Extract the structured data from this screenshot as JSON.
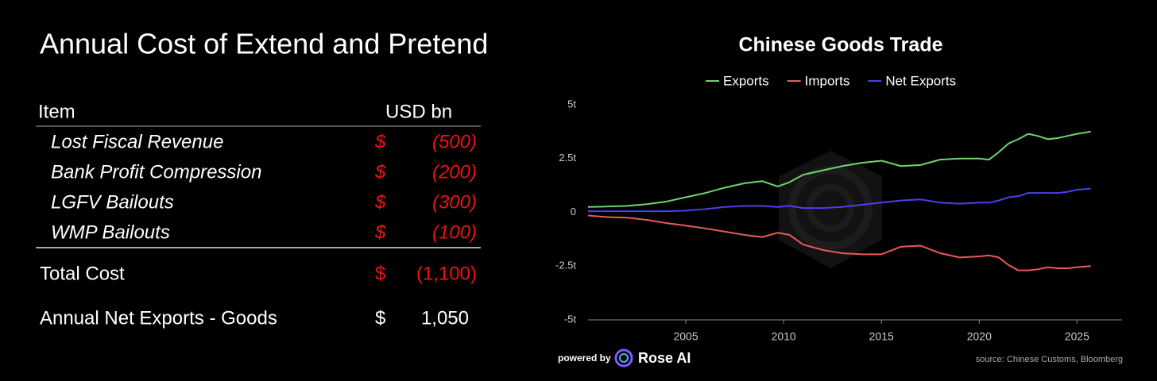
{
  "table": {
    "title": "Annual Cost of Extend and Pretend",
    "header": [
      "Item",
      "USD bn"
    ],
    "rows": [
      [
        "Lost Fiscal Revenue",
        "$",
        "(500)"
      ],
      [
        "Bank Profit Compression",
        "$",
        "(200)"
      ],
      [
        "LGFV Bailouts",
        "$",
        "(300)"
      ],
      [
        "WMP Bailouts",
        "$",
        "(100)"
      ]
    ],
    "total": [
      "Total Cost",
      "$",
      "(1,100)"
    ],
    "net_exports": [
      "Annual Net Exports - Goods",
      "$",
      "1,050"
    ]
  },
  "chart_data": {
    "type": "line",
    "title": "Chinese Goods Trade",
    "x": [
      2000,
      2001,
      2002,
      2003,
      2004,
      2005,
      2006,
      2007,
      2008,
      2008.9,
      2009.7,
      2010.3,
      2011,
      2012,
      2013,
      2014,
      2015,
      2016,
      2017,
      2018,
      2019,
      2020,
      2020.5,
      2021,
      2021.5,
      2022,
      2022.5,
      2023,
      2023.5,
      2024,
      2024.5,
      2025,
      2025.7
    ],
    "series": [
      {
        "name": "Exports",
        "color": "#6fd46f",
        "values": [
          0.25,
          0.27,
          0.3,
          0.38,
          0.5,
          0.7,
          0.9,
          1.15,
          1.35,
          1.45,
          1.2,
          1.4,
          1.75,
          1.95,
          2.15,
          2.3,
          2.4,
          2.15,
          2.2,
          2.45,
          2.5,
          2.5,
          2.45,
          2.8,
          3.2,
          3.4,
          3.65,
          3.55,
          3.4,
          3.45,
          3.55,
          3.65,
          3.75
        ]
      },
      {
        "name": "Imports",
        "color": "#e85a5a",
        "values": [
          -0.15,
          -0.22,
          -0.25,
          -0.35,
          -0.5,
          -0.62,
          -0.75,
          -0.9,
          -1.05,
          -1.15,
          -0.95,
          -1.05,
          -1.5,
          -1.75,
          -1.9,
          -1.95,
          -1.95,
          -1.6,
          -1.55,
          -1.9,
          -2.1,
          -2.05,
          -2.0,
          -2.1,
          -2.45,
          -2.7,
          -2.7,
          -2.65,
          -2.55,
          -2.6,
          -2.6,
          -2.55,
          -2.5
        ]
      },
      {
        "name": "Net Exports",
        "color": "#4b3ff0",
        "values": [
          0.05,
          0.05,
          0.05,
          0.05,
          0.05,
          0.08,
          0.15,
          0.25,
          0.3,
          0.3,
          0.25,
          0.3,
          0.2,
          0.2,
          0.25,
          0.35,
          0.45,
          0.55,
          0.6,
          0.45,
          0.4,
          0.45,
          0.45,
          0.55,
          0.7,
          0.75,
          0.9,
          0.9,
          0.9,
          0.9,
          0.95,
          1.05,
          1.1
        ]
      }
    ],
    "xlim": [
      2000,
      2027.3
    ],
    "xticks": [
      2005,
      2010,
      2015,
      2020,
      2025
    ],
    "ylim": [
      -5,
      5
    ],
    "yticks": [
      {
        "value": -5,
        "label": "-5t"
      },
      {
        "value": -2.5,
        "label": "-2.5t"
      },
      0,
      {
        "value": 2.5,
        "label": "2.5t"
      },
      {
        "value": 5,
        "label": "5t"
      }
    ],
    "grid": false,
    "powered_by": "powered by",
    "brand": "Rose AI",
    "source": "source: Chinese Customs, Bloomberg"
  }
}
